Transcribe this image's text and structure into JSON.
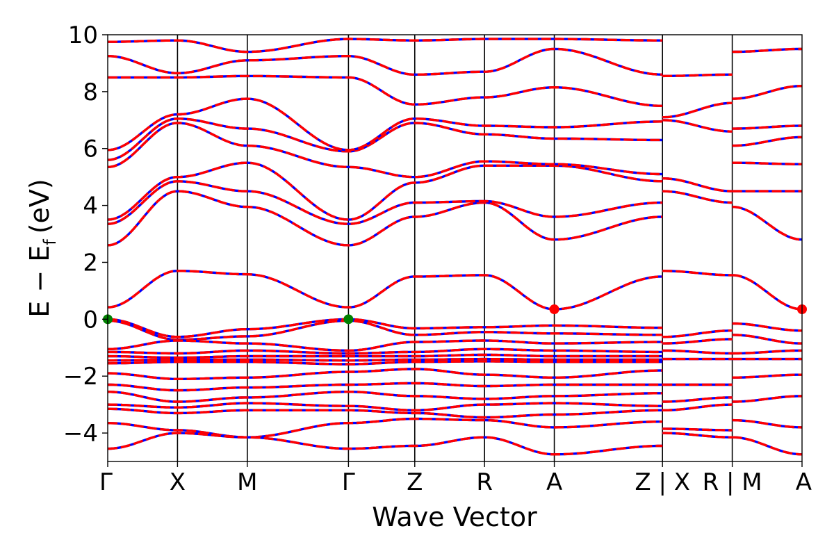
{
  "chart_data": {
    "type": "line",
    "title": "",
    "xlabel": "Wave Vector",
    "ylabel": "E − E",
    "ylabel_sub": "f",
    "ylabel_unit": "(eV)",
    "ylim": [
      -5,
      10
    ],
    "yticks": [
      -4,
      -2,
      0,
      2,
      4,
      6,
      8,
      10
    ],
    "ytick_labels": [
      "−4",
      "−2",
      "0",
      "2",
      "4",
      "6",
      "8",
      "10"
    ],
    "kpath_positions": [
      0,
      1,
      2,
      3.45,
      4.4,
      5.4,
      6.4,
      7.95,
      8.95,
      9.95
    ],
    "kpath_labels": [
      "Γ",
      "X",
      "M",
      "Γ",
      "Z",
      "R",
      "A",
      "Z | X",
      "R | M",
      "A"
    ],
    "colors": {
      "spin_up": "#ff0000",
      "spin_down": "#0000ff",
      "vbm_marker": "#008000",
      "cbm_marker": "#ff0000"
    },
    "series": [
      {
        "x": [
          0,
          1,
          2,
          3.45,
          4.4,
          5.4,
          6.4,
          7.95
        ],
        "y": [
          0.42,
          1.7,
          1.58,
          0.42,
          1.5,
          1.55,
          0.35,
          1.5
        ]
      },
      {
        "x": [
          0,
          1,
          2,
          3.45,
          4.4,
          5.4,
          6.4,
          7.95
        ],
        "y": [
          0.0,
          -0.62,
          -0.35,
          0.0,
          -0.32,
          -0.28,
          -0.22,
          -0.3
        ]
      },
      {
        "x": [
          0,
          1,
          2,
          3.45,
          4.4,
          5.4,
          6.4,
          7.95
        ],
        "y": [
          -0.05,
          -0.72,
          -0.6,
          -0.05,
          -0.55,
          -0.45,
          -0.5,
          -0.55
        ]
      },
      {
        "x": [
          0,
          1,
          2,
          3.45,
          4.4,
          5.4,
          6.4,
          7.95
        ],
        "y": [
          -1.05,
          -0.75,
          -0.85,
          -1.1,
          -0.8,
          -0.75,
          -0.85,
          -0.8
        ]
      },
      {
        "x": [
          0,
          1,
          2,
          3.45,
          4.4,
          5.4,
          6.4,
          7.95
        ],
        "y": [
          -1.15,
          -1.2,
          -1.1,
          -1.2,
          -1.15,
          -1.05,
          -1.1,
          -1.15
        ]
      },
      {
        "x": [
          0,
          1,
          2,
          3.45,
          4.4,
          5.4,
          6.4,
          7.95
        ],
        "y": [
          -1.3,
          -1.35,
          -1.3,
          -1.3,
          -1.3,
          -1.25,
          -1.3,
          -1.3
        ]
      },
      {
        "x": [
          0,
          1,
          2,
          3.45,
          4.4,
          5.4,
          6.4,
          7.95
        ],
        "y": [
          -1.45,
          -1.42,
          -1.42,
          -1.45,
          -1.42,
          -1.4,
          -1.42,
          -1.42
        ]
      },
      {
        "x": [
          0,
          1,
          2,
          3.45,
          4.4,
          5.4,
          6.4,
          7.95
        ],
        "y": [
          -1.55,
          -1.5,
          -1.5,
          -1.58,
          -1.5,
          -1.48,
          -1.5,
          -1.5
        ]
      },
      {
        "x": [
          0,
          1,
          2,
          3.45,
          4.4,
          5.4,
          6.4,
          7.95
        ],
        "y": [
          -1.9,
          -2.1,
          -2.05,
          -1.85,
          -1.75,
          -1.95,
          -2.05,
          -1.8
        ]
      },
      {
        "x": [
          0,
          1,
          2,
          3.45,
          4.4,
          5.4,
          6.4,
          7.95
        ],
        "y": [
          -2.3,
          -2.5,
          -2.4,
          -2.3,
          -2.25,
          -2.35,
          -2.3,
          -2.3
        ]
      },
      {
        "x": [
          0,
          1,
          2,
          3.45,
          4.4,
          5.4,
          6.4,
          7.95
        ],
        "y": [
          -2.55,
          -2.9,
          -2.75,
          -2.55,
          -2.7,
          -2.8,
          -2.7,
          -2.6
        ]
      },
      {
        "x": [
          0,
          1,
          2,
          3.45,
          4.4,
          5.4,
          6.4,
          7.95
        ],
        "y": [
          -3.0,
          -3.1,
          -2.95,
          -3.05,
          -3.2,
          -3.0,
          -2.95,
          -3.05
        ]
      },
      {
        "x": [
          0,
          1,
          2,
          3.45,
          4.4,
          5.4,
          6.4,
          7.95
        ],
        "y": [
          -3.15,
          -3.3,
          -3.2,
          -3.2,
          -3.3,
          -3.45,
          -3.35,
          -3.2
        ]
      },
      {
        "x": [
          0,
          1,
          2,
          3.45,
          4.4,
          5.4,
          6.4,
          7.95
        ],
        "y": [
          -3.65,
          -3.9,
          -4.15,
          -3.65,
          -3.5,
          -3.55,
          -3.8,
          -3.6
        ]
      },
      {
        "x": [
          0,
          1,
          2,
          3.45,
          4.4,
          5.4,
          6.4,
          7.95
        ],
        "y": [
          -4.55,
          -4.0,
          -4.15,
          -4.55,
          -4.45,
          -4.15,
          -4.75,
          -4.45
        ]
      },
      {
        "x": [
          0,
          1,
          2,
          3.45,
          4.4,
          5.4,
          6.4,
          7.95
        ],
        "y": [
          2.6,
          4.5,
          3.95,
          2.6,
          3.6,
          4.1,
          2.8,
          3.6
        ]
      },
      {
        "x": [
          0,
          1,
          2,
          3.45,
          4.4,
          5.4,
          6.4,
          7.95
        ],
        "y": [
          3.35,
          4.85,
          4.5,
          3.35,
          4.1,
          4.15,
          3.6,
          4.1
        ]
      },
      {
        "x": [
          0,
          1,
          2,
          3.45,
          4.4,
          5.4,
          6.4,
          7.95
        ],
        "y": [
          3.5,
          5.0,
          5.5,
          3.5,
          4.8,
          5.4,
          5.4,
          4.85
        ]
      },
      {
        "x": [
          0,
          1,
          2,
          3.45,
          4.4,
          5.4,
          6.4,
          7.95
        ],
        "y": [
          5.35,
          6.9,
          6.1,
          5.35,
          5.0,
          5.55,
          5.45,
          5.1
        ]
      },
      {
        "x": [
          0,
          1,
          2,
          3.45,
          4.4,
          5.4,
          6.4,
          7.95
        ],
        "y": [
          5.6,
          7.05,
          6.7,
          5.9,
          6.9,
          6.5,
          6.35,
          6.3
        ]
      },
      {
        "x": [
          0,
          1,
          2,
          3.45,
          4.4,
          5.4,
          6.4,
          7.95
        ],
        "y": [
          5.95,
          7.2,
          7.75,
          5.95,
          7.05,
          6.8,
          6.75,
          6.95
        ]
      },
      {
        "x": [
          0,
          1,
          2,
          3.45,
          4.4,
          5.4,
          6.4,
          7.95
        ],
        "y": [
          8.5,
          8.5,
          8.55,
          8.5,
          7.55,
          7.8,
          8.15,
          7.5
        ]
      },
      {
        "x": [
          0,
          1,
          2,
          3.45,
          4.4,
          5.4,
          6.4,
          7.95
        ],
        "y": [
          9.25,
          8.65,
          9.1,
          9.25,
          8.6,
          8.7,
          9.5,
          8.6
        ]
      },
      {
        "x": [
          0,
          1,
          2,
          3.45,
          4.4,
          5.4,
          6.4,
          7.95
        ],
        "y": [
          9.75,
          9.8,
          9.4,
          9.85,
          9.8,
          9.85,
          9.85,
          9.8
        ]
      },
      {
        "x": [
          7.95,
          8.95
        ],
        "y": [
          1.7,
          1.55
        ]
      },
      {
        "x": [
          7.95,
          8.95
        ],
        "y": [
          -0.62,
          -0.4
        ]
      },
      {
        "x": [
          7.95,
          8.95
        ],
        "y": [
          -0.85,
          -0.7
        ]
      },
      {
        "x": [
          7.95,
          8.95
        ],
        "y": [
          -1.1,
          -1.2
        ]
      },
      {
        "x": [
          7.95,
          8.95
        ],
        "y": [
          -1.4,
          -1.4
        ]
      },
      {
        "x": [
          7.95,
          8.95
        ],
        "y": [
          -2.3,
          -2.3
        ]
      },
      {
        "x": [
          7.95,
          8.95
        ],
        "y": [
          -2.9,
          -2.75
        ]
      },
      {
        "x": [
          7.95,
          8.95
        ],
        "y": [
          -3.2,
          -3.0
        ]
      },
      {
        "x": [
          7.95,
          8.95
        ],
        "y": [
          -3.85,
          -3.9
        ]
      },
      {
        "x": [
          7.95,
          8.95
        ],
        "y": [
          -4.0,
          -4.15
        ]
      },
      {
        "x": [
          7.95,
          8.95
        ],
        "y": [
          4.5,
          4.1
        ]
      },
      {
        "x": [
          7.95,
          8.95
        ],
        "y": [
          4.95,
          4.5
        ]
      },
      {
        "x": [
          7.95,
          8.95
        ],
        "y": [
          7.0,
          6.6
        ]
      },
      {
        "x": [
          7.95,
          8.95
        ],
        "y": [
          7.1,
          7.6
        ]
      },
      {
        "x": [
          7.95,
          8.95
        ],
        "y": [
          8.55,
          8.6
        ]
      },
      {
        "x": [
          8.95,
          9.95
        ],
        "y": [
          1.55,
          0.35
        ]
      },
      {
        "x": [
          8.95,
          9.95
        ],
        "y": [
          -0.15,
          -0.4
        ]
      },
      {
        "x": [
          8.95,
          9.95
        ],
        "y": [
          -0.55,
          -0.85
        ]
      },
      {
        "x": [
          8.95,
          9.95
        ],
        "y": [
          -1.2,
          -1.1
        ]
      },
      {
        "x": [
          8.95,
          9.95
        ],
        "y": [
          -1.4,
          -1.4
        ]
      },
      {
        "x": [
          8.95,
          9.95
        ],
        "y": [
          -2.05,
          -1.95
        ]
      },
      {
        "x": [
          8.95,
          9.95
        ],
        "y": [
          -2.9,
          -2.7
        ]
      },
      {
        "x": [
          8.95,
          9.95
        ],
        "y": [
          -3.55,
          -3.8
        ]
      },
      {
        "x": [
          8.95,
          9.95
        ],
        "y": [
          -4.15,
          -4.75
        ]
      },
      {
        "x": [
          8.95,
          9.95
        ],
        "y": [
          3.95,
          2.8
        ]
      },
      {
        "x": [
          8.95,
          9.95
        ],
        "y": [
          4.5,
          4.5
        ]
      },
      {
        "x": [
          8.95,
          9.95
        ],
        "y": [
          5.5,
          5.45
        ]
      },
      {
        "x": [
          8.95,
          9.95
        ],
        "y": [
          6.1,
          6.4
        ]
      },
      {
        "x": [
          8.95,
          9.95
        ],
        "y": [
          6.7,
          6.8
        ]
      },
      {
        "x": [
          8.95,
          9.95
        ],
        "y": [
          7.75,
          8.2
        ]
      },
      {
        "x": [
          8.95,
          9.95
        ],
        "y": [
          9.4,
          9.5
        ]
      }
    ],
    "markers": [
      {
        "type": "vbm",
        "x": 0,
        "y": 0.0
      },
      {
        "type": "vbm",
        "x": 3.45,
        "y": 0.0
      },
      {
        "type": "cbm",
        "x": 6.4,
        "y": 0.35
      },
      {
        "type": "cbm",
        "x": 9.95,
        "y": 0.35
      }
    ]
  }
}
